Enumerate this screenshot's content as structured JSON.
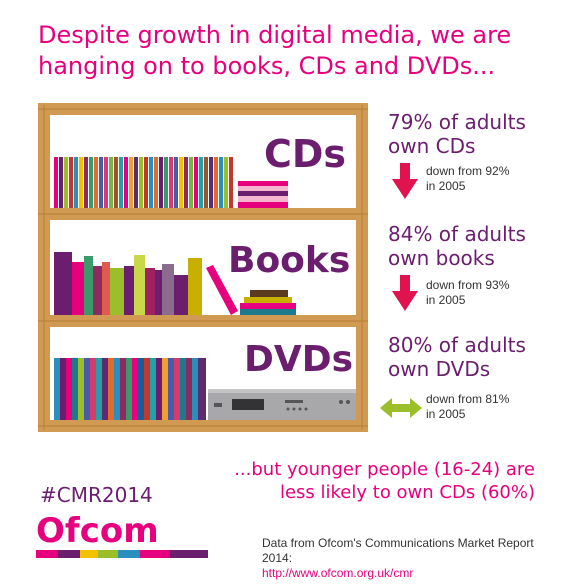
{
  "headline_line1": "Despite growth in digital media, we are",
  "headline_line2": "hanging on to books, CDs and DVDs...",
  "chart_data": {
    "type": "bar",
    "title": "Despite growth in digital media, we are hanging on to books, CDs and DVDs...",
    "categories": [
      "CDs",
      "Books",
      "DVDs"
    ],
    "unit": "% of adults",
    "series": [
      {
        "name": "2014",
        "values": [
          79,
          84,
          80
        ]
      },
      {
        "name": "2005",
        "values": [
          92,
          93,
          81
        ]
      }
    ],
    "trend": [
      "down",
      "down",
      "flat"
    ]
  },
  "shelves": {
    "cds_label": "CDs",
    "books_label": "Books",
    "dvds_label": "DVDs"
  },
  "stats": {
    "cds_line1": "79% of adults",
    "cds_line2": "own CDs",
    "cds_change1": "down from 92%",
    "cds_change2": "in 2005",
    "books_line1": "84% of adults",
    "books_line2": "own books",
    "books_change1": "down from 93%",
    "books_change2": "in 2005",
    "dvds_line1": "80% of adults",
    "dvds_line2": "own DVDs",
    "dvds_change1": "down from 81%",
    "dvds_change2": "in 2005"
  },
  "hashtag": "#CMR2014",
  "younger_line1": "...but younger people (16-24) are",
  "younger_line2": "less likely to own CDs (60%)",
  "source_line1": "Data from Ofcom's Communications Market Report 2014:",
  "source_url": "http://www.ofcom.org.uk/cmr",
  "logo_text": "Ofcom",
  "colors": {
    "magenta": "#e6007e",
    "purple": "#6b1d6e",
    "wood": "#d09a52",
    "wood_dark": "#b57f3b",
    "arrow_down": "#e0134f",
    "arrow_flat": "#9bbf2a"
  }
}
